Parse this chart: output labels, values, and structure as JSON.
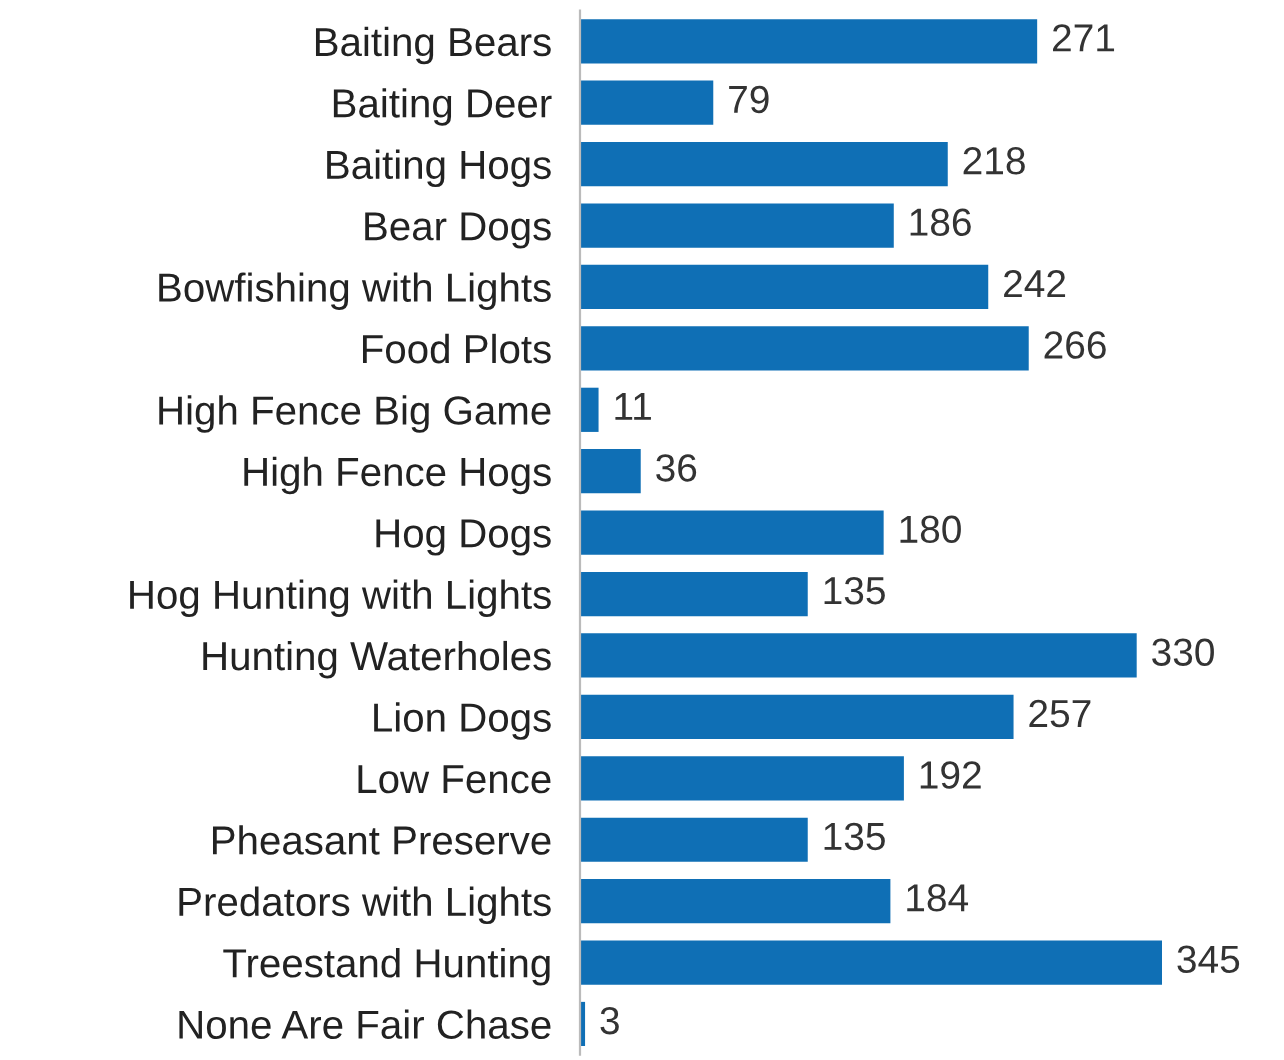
{
  "chart_data": {
    "type": "bar",
    "orientation": "horizontal",
    "data_labels": true,
    "grid": false,
    "legend": false,
    "categories": [
      "Baiting Bears",
      "Baiting Deer",
      "Baiting Hogs",
      "Bear Dogs",
      "Bowfishing with Lights",
      "Food Plots",
      "High Fence Big Game",
      "High Fence Hogs",
      "Hog Dogs",
      "Hog Hunting with Lights",
      "Hunting Waterholes",
      "Lion Dogs",
      "Low Fence",
      "Pheasant Preserve",
      "Predators with Lights",
      "Treestand Hunting",
      "None Are Fair Chase"
    ],
    "values": [
      271,
      79,
      218,
      186,
      242,
      266,
      11,
      36,
      180,
      135,
      330,
      257,
      192,
      135,
      184,
      345,
      3
    ],
    "color": "#0f6fb5"
  }
}
